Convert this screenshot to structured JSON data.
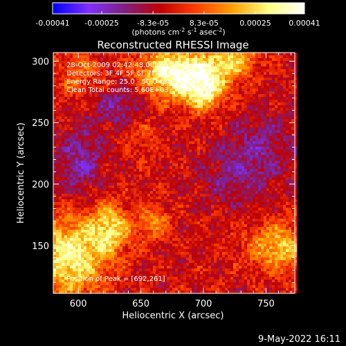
{
  "chart_data": {
    "type": "heatmap",
    "title": "Reconstructed RHESSI Image",
    "xlabel": "Heliocentric X (arcsec)",
    "ylabel": "Heliocentric Y (arcsec)",
    "xlim": [
      580,
      773
    ],
    "ylim": [
      111,
      307
    ],
    "x_ticks": [
      600,
      650,
      700,
      750
    ],
    "y_ticks": [
      150,
      200,
      250,
      300
    ],
    "grid": false,
    "colorbar": {
      "range": [
        -0.00041,
        0.00041
      ],
      "tick_values": [
        -0.00041,
        -0.00025,
        -8.3e-05,
        8.3e-05,
        0.00025,
        0.00041
      ],
      "tick_labels": [
        "-0.00041",
        "-0.00025",
        "-8.3e-05",
        "8.3e-05",
        "0.00025",
        "0.00041"
      ],
      "label": "(photons cm-2 s-1 asec-2)",
      "label_parts": {
        "prefix": "(photons cm",
        "exp1": "-2",
        "mid1": " s",
        "exp2": "-1",
        "mid2": " asec",
        "exp3": "-2",
        "suffix": ")"
      },
      "colors": [
        "#0000ff",
        "#8030ff",
        "#802080",
        "#c00000",
        "#ff4000",
        "#ffa000",
        "#ffff80",
        "#ffffff"
      ]
    },
    "annotations": [
      "28-Oct-2009 02:42:48.000 to 02:45:24.000",
      "Detectors: 3F 4F 5F 6F 7F 8F, All 0.6",
      "Energy Range: 25.0 - 50.0 keV",
      "Clean    Total counts: 5.60E+03"
    ],
    "peak_label": "Position of Peak = [692,261]",
    "peak": [
      692,
      261
    ],
    "sources": [
      {
        "x": 675,
        "y": 292,
        "amp": 0.00041,
        "sx": 18,
        "sy": 14
      },
      {
        "x": 700,
        "y": 278,
        "amp": 0.00034,
        "sx": 12,
        "sy": 12
      },
      {
        "x": 720,
        "y": 300,
        "amp": 0.00028,
        "sx": 15,
        "sy": 10
      },
      {
        "x": 592,
        "y": 142,
        "amp": 0.00036,
        "sx": 20,
        "sy": 22
      },
      {
        "x": 625,
        "y": 165,
        "amp": 0.00028,
        "sx": 12,
        "sy": 14
      },
      {
        "x": 760,
        "y": 150,
        "amp": 0.00026,
        "sx": 18,
        "sy": 14
      },
      {
        "x": 660,
        "y": 170,
        "amp": 0.00018,
        "sx": 8,
        "sy": 10
      },
      {
        "x": 598,
        "y": 290,
        "amp": 0.00012,
        "sx": 14,
        "sy": 14
      },
      {
        "x": 650,
        "y": 240,
        "amp": 8e-05,
        "sx": 10,
        "sy": 10
      },
      {
        "x": 745,
        "y": 230,
        "amp": -0.00012,
        "sx": 20,
        "sy": 22
      },
      {
        "x": 600,
        "y": 220,
        "amp": -0.00016,
        "sx": 14,
        "sy": 20
      },
      {
        "x": 630,
        "y": 265,
        "amp": -0.00014,
        "sx": 14,
        "sy": 12
      },
      {
        "x": 720,
        "y": 205,
        "amp": -0.0001,
        "sx": 18,
        "sy": 16
      }
    ]
  },
  "footer": {
    "date_stamp": "9-May-2022 16:11"
  }
}
